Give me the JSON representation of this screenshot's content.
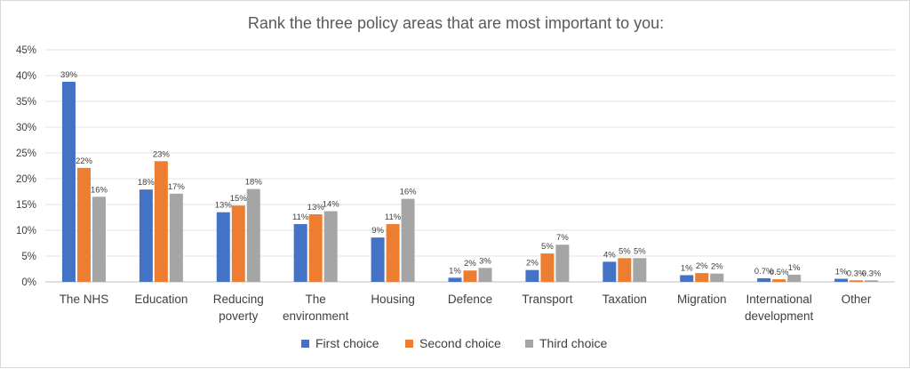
{
  "chart_data": {
    "type": "bar",
    "title": "Rank the three policy areas that are most important to you:",
    "categories": [
      [
        "The NHS"
      ],
      [
        "Education"
      ],
      [
        "Reducing",
        "poverty"
      ],
      [
        "The",
        "environment"
      ],
      [
        "Housing"
      ],
      [
        "Defence"
      ],
      [
        "Transport"
      ],
      [
        "Taxation"
      ],
      [
        "Migration"
      ],
      [
        "International",
        "development"
      ],
      [
        "Other"
      ]
    ],
    "series": [
      {
        "name": "First choice",
        "color": "#4472c4",
        "values": [
          38.8,
          17.9,
          13.5,
          11.2,
          8.6,
          0.8,
          2.3,
          3.9,
          1.3,
          0.7,
          0.6
        ],
        "labels": [
          "39%",
          "18%",
          "13%",
          "11%",
          "9%",
          "1%",
          "2%",
          "4%",
          "1%",
          "0.7%",
          "1%"
        ]
      },
      {
        "name": "Second choice",
        "color": "#ed7d31",
        "values": [
          22.1,
          23.4,
          14.8,
          13.1,
          11.2,
          2.2,
          5.5,
          4.6,
          1.7,
          0.5,
          0.3
        ],
        "labels": [
          "22%",
          "23%",
          "15%",
          "13%",
          "11%",
          "2%",
          "5%",
          "5%",
          "2%",
          "0.5%",
          "0.3%"
        ]
      },
      {
        "name": "Third choice",
        "color": "#a5a5a5",
        "values": [
          16.5,
          17.1,
          18.0,
          13.7,
          16.1,
          2.7,
          7.2,
          4.6,
          1.6,
          1.4,
          0.3
        ],
        "labels": [
          "16%",
          "17%",
          "18%",
          "14%",
          "16%",
          "3%",
          "7%",
          "5%",
          "2%",
          "1%",
          "0.3%"
        ]
      }
    ],
    "y_ticks": [
      "0%",
      "5%",
      "10%",
      "15%",
      "20%",
      "25%",
      "30%",
      "35%",
      "40%",
      "45%"
    ],
    "ylim": [
      0,
      45
    ],
    "grid": true,
    "legend_position": "bottom"
  }
}
